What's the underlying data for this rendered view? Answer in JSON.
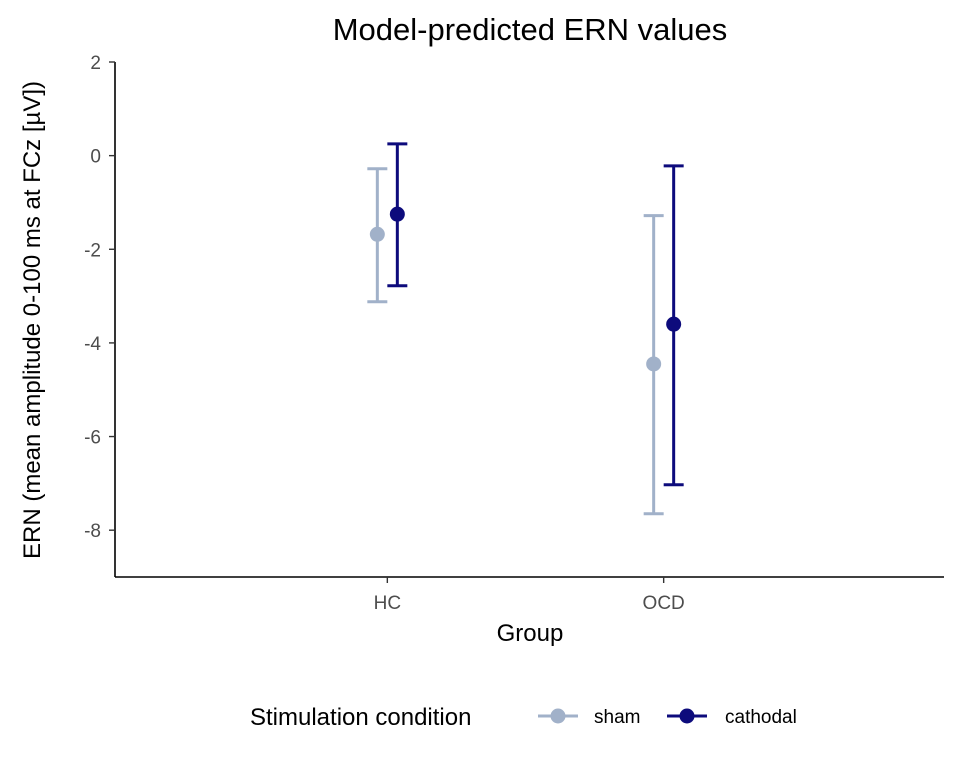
{
  "chart_data": {
    "type": "scatter",
    "title": "Model-predicted ERN values",
    "xlabel": "Group",
    "ylabel": "ERN (mean amplitude 0-100 ms at FCz [µV])",
    "categories": [
      "HC",
      "OCD"
    ],
    "y_ticks": [
      "2",
      "0",
      "-2",
      "-4",
      "-6",
      "-8"
    ],
    "ylim": [
      -9,
      2
    ],
    "grid": false,
    "legend": {
      "title": "Stimulation condition",
      "position": "bottom"
    },
    "series": [
      {
        "name": "sham",
        "color": "#a1b1c9",
        "points": [
          {
            "x": "HC",
            "y": -1.68,
            "lower": -3.12,
            "upper": -0.28
          },
          {
            "x": "OCD",
            "y": -4.45,
            "lower": -7.65,
            "upper": -1.28
          }
        ]
      },
      {
        "name": "cathodal",
        "color": "#0d0b7c",
        "points": [
          {
            "x": "HC",
            "y": -1.25,
            "lower": -2.78,
            "upper": 0.25
          },
          {
            "x": "OCD",
            "y": -3.6,
            "lower": -7.03,
            "upper": -0.22
          }
        ]
      }
    ]
  }
}
